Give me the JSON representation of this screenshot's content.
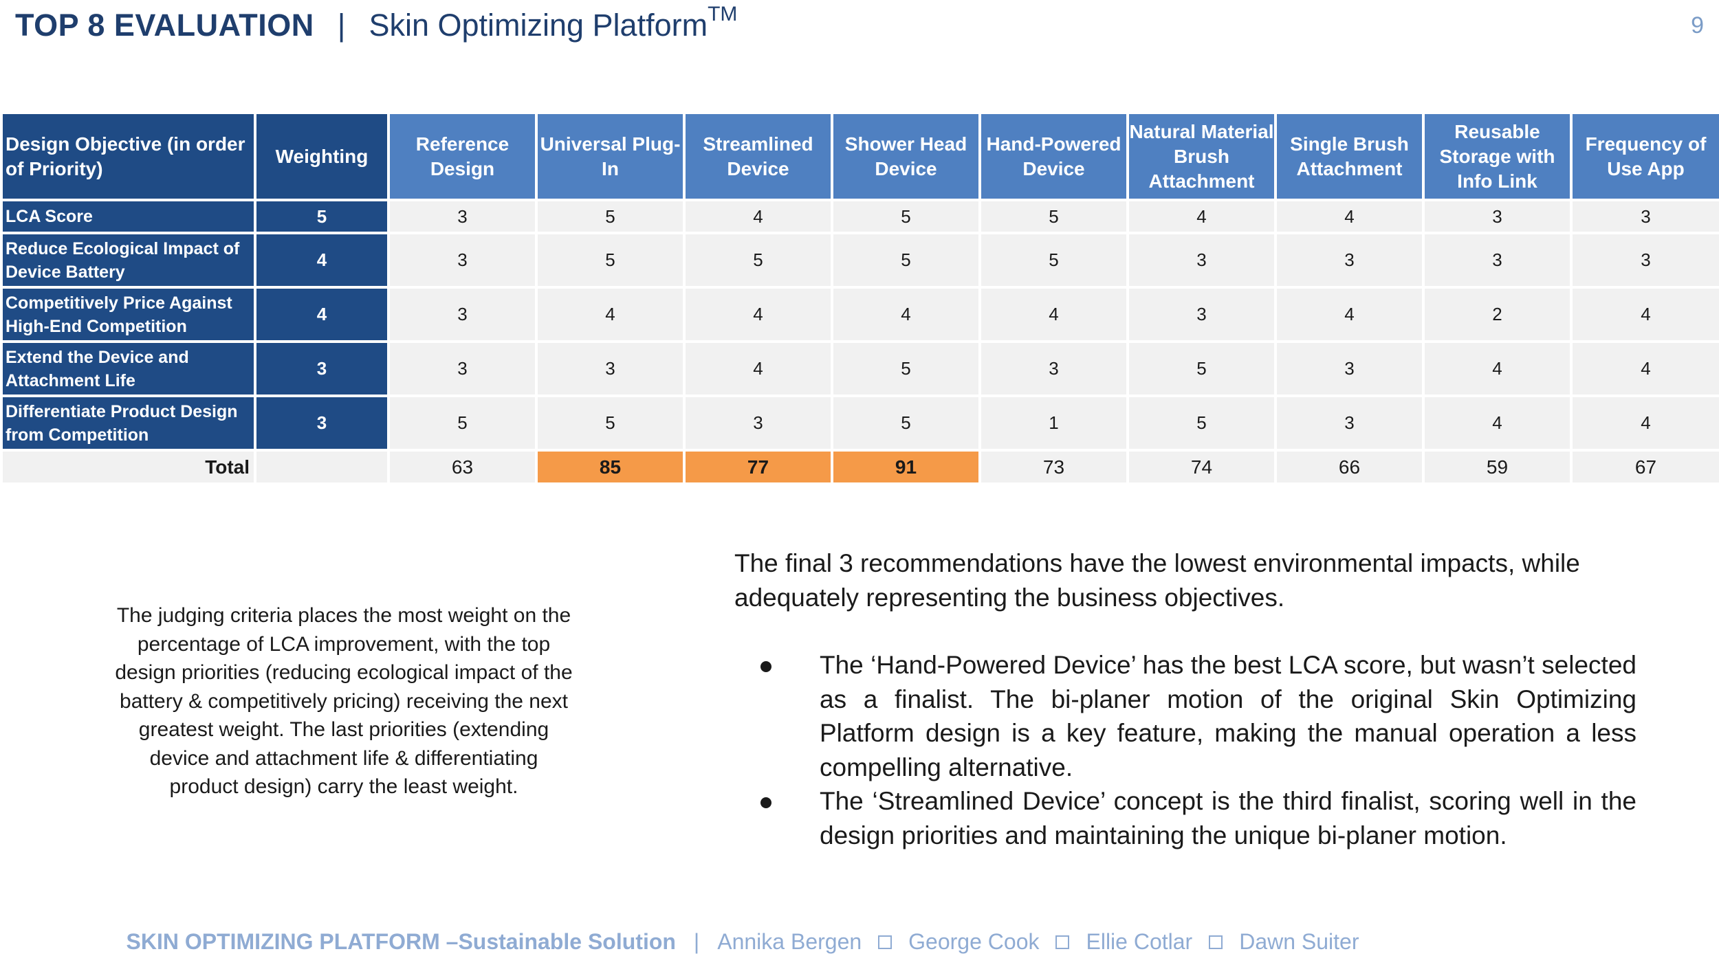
{
  "header": {
    "title": "TOP 8 EVALUATION",
    "separator": "|",
    "subtitle": "Skin Optimizing Platform",
    "trademark": "TM",
    "page_number": "9"
  },
  "table": {
    "headers": {
      "objective": "Design Objective (in order of Priority)",
      "weighting": "Weighting",
      "options": [
        "Reference Design",
        "Universal Plug-In",
        "Streamlined Device",
        "Shower Head Device",
        "Hand-Powered Device",
        "Natural Material Brush Attachment",
        "Single Brush Attachment",
        "Reusable Storage with Info Link",
        "Frequency of Use App"
      ]
    },
    "rows": [
      {
        "objective": "LCA Score",
        "weight": "5",
        "scores": [
          "3",
          "5",
          "4",
          "5",
          "5",
          "4",
          "4",
          "3",
          "3"
        ]
      },
      {
        "objective": "Reduce Ecological Impact of Device Battery",
        "weight": "4",
        "scores": [
          "3",
          "5",
          "5",
          "5",
          "5",
          "3",
          "3",
          "3",
          "3"
        ]
      },
      {
        "objective": "Competitively Price Against High-End Competition",
        "weight": "4",
        "scores": [
          "3",
          "4",
          "4",
          "4",
          "4",
          "3",
          "4",
          "2",
          "4"
        ]
      },
      {
        "objective": "Extend the Device and Attachment Life",
        "weight": "3",
        "scores": [
          "3",
          "3",
          "4",
          "5",
          "3",
          "5",
          "3",
          "4",
          "4"
        ]
      },
      {
        "objective": "Differentiate Product Design from Competition",
        "weight": "3",
        "scores": [
          "5",
          "5",
          "3",
          "5",
          "1",
          "5",
          "3",
          "4",
          "4"
        ]
      }
    ],
    "total_label": "Total",
    "totals": [
      "63",
      "85",
      "77",
      "91",
      "73",
      "74",
      "66",
      "59",
      "67"
    ],
    "highlight_color": "#f59a48",
    "header_color": "#1f4b85",
    "option_header_color": "#4f80c1"
  },
  "judging_text": "The judging criteria places the most weight on the percentage of LCA improvement, with the top design priorities (reducing ecological impact of the battery & competitively pricing) receiving the next greatest weight. The last priorities (extending device and attachment life & differentiating product design) carry the least weight.",
  "findings": {
    "intro": "The final 3 recommendations have the lowest environmental impacts, while adequately representing the business objectives.",
    "bullets": [
      "The ‘Hand-Powered Device’ has the best LCA score, but wasn’t selected as a finalist. The bi-planer motion of the original Skin Optimizing Platform design is a key feature, making the manual operation a less compelling alternative.",
      "The ‘Streamlined Device’ concept is the third finalist, scoring well in the design priorities and maintaining the unique bi-planer motion."
    ]
  },
  "footer": {
    "project": "SKIN OPTIMIZING PLATFORM –Sustainable Solution",
    "separator": "|",
    "authors": [
      "Annika Bergen",
      "George Cook",
      "Ellie Cotlar",
      "Dawn Suiter"
    ]
  }
}
